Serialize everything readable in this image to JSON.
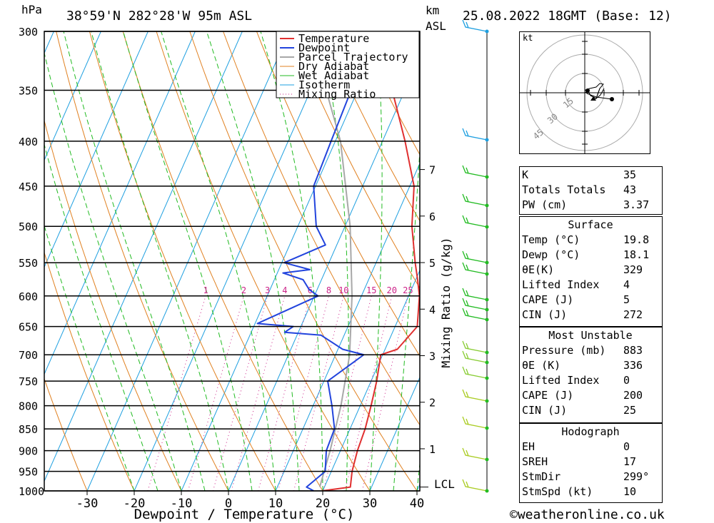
{
  "header": {
    "pressure_unit": "hPa",
    "location": "38°59'N  282°28'W  95m  ASL",
    "km_label": "km",
    "asl_label": "ASL",
    "datetime": "25.08.2022  18GMT  (Base: 12)"
  },
  "chart_data": {
    "type": "skew-t",
    "xlabel": "Dewpoint / Temperature (°C)",
    "ylabel_left": "hPa",
    "ylabel_right": "Mixing Ratio (g/kg)",
    "x_ticks": [
      -30,
      -20,
      -10,
      0,
      10,
      20,
      30,
      40
    ],
    "pressure_levels": [
      300,
      350,
      400,
      450,
      500,
      550,
      600,
      650,
      700,
      750,
      800,
      850,
      900,
      950,
      1000
    ],
    "km_ticks": [
      1,
      2,
      3,
      4,
      5,
      6,
      7
    ],
    "lcl_label": "LCL",
    "mixing_ratio_labels": [
      "1",
      "2",
      "3",
      "4",
      "6",
      "8",
      "10",
      "15",
      "20",
      "25"
    ],
    "legend": [
      "Temperature",
      "Dewpoint",
      "Parcel Trajectory",
      "Dry Adiabat",
      "Wet Adiabat",
      "Isotherm",
      "Mixing Ratio"
    ],
    "colors": {
      "temperature": "#e03030",
      "dewpoint": "#2244dd",
      "parcel": "#a8a8a8",
      "dry_adiabat": "#e08020",
      "wet_adiabat": "#22bb22",
      "isotherm": "#1e9fe0",
      "mixing_ratio": "#cc2288"
    },
    "temperature_profile": [
      {
        "p": 1000,
        "t": 19.8
      },
      {
        "p": 990,
        "t": 25.5
      },
      {
        "p": 950,
        "t": 24.4
      },
      {
        "p": 900,
        "t": 23.6
      },
      {
        "p": 850,
        "t": 23.2
      },
      {
        "p": 800,
        "t": 22.3
      },
      {
        "p": 750,
        "t": 21.2
      },
      {
        "p": 700,
        "t": 19.6
      },
      {
        "p": 690,
        "t": 22.6
      },
      {
        "p": 650,
        "t": 24.7
      },
      {
        "p": 600,
        "t": 22.3
      },
      {
        "p": 575,
        "t": 20.4
      },
      {
        "p": 550,
        "t": 18.3
      },
      {
        "p": 500,
        "t": 14.2
      },
      {
        "p": 450,
        "t": 10.9
      },
      {
        "p": 400,
        "t": 4.8
      },
      {
        "p": 350,
        "t": -2.7
      },
      {
        "p": 300,
        "t": -12.0
      }
    ],
    "dewpoint_profile": [
      {
        "p": 1000,
        "t": 18.1
      },
      {
        "p": 990,
        "t": 16.2
      },
      {
        "p": 950,
        "t": 18.7
      },
      {
        "p": 900,
        "t": 17.0
      },
      {
        "p": 850,
        "t": 16.7
      },
      {
        "p": 800,
        "t": 14.0
      },
      {
        "p": 750,
        "t": 10.8
      },
      {
        "p": 700,
        "t": 16.0
      },
      {
        "p": 690,
        "t": 11.0
      },
      {
        "p": 665,
        "t": 5.1
      },
      {
        "p": 660,
        "t": -2.9
      },
      {
        "p": 650,
        "t": -1.6
      },
      {
        "p": 645,
        "t": -9.5
      },
      {
        "p": 600,
        "t": 0.8
      },
      {
        "p": 590,
        "t": -1.7
      },
      {
        "p": 575,
        "t": -3.9
      },
      {
        "p": 565,
        "t": -8.8
      },
      {
        "p": 560,
        "t": -3.4
      },
      {
        "p": 550,
        "t": -9.5
      },
      {
        "p": 525,
        "t": -2.4
      },
      {
        "p": 500,
        "t": -6.1
      },
      {
        "p": 450,
        "t": -10.4
      },
      {
        "p": 400,
        "t": -10.9
      },
      {
        "p": 350,
        "t": -11.4
      },
      {
        "p": 300,
        "t": -17.0
      }
    ],
    "parcel_profile": [
      {
        "p": 990,
        "t": 19.0
      },
      {
        "p": 900,
        "t": 17.8
      },
      {
        "p": 800,
        "t": 15.9
      },
      {
        "p": 700,
        "t": 13.0
      },
      {
        "p": 600,
        "t": 8.0
      },
      {
        "p": 500,
        "t": 1.1
      },
      {
        "p": 400,
        "t": -8.9
      },
      {
        "p": 300,
        "t": -25.7
      }
    ]
  },
  "hodograph": {
    "unit": "kt",
    "ring_labels": [
      "15",
      "30",
      "45"
    ]
  },
  "indices": [
    {
      "label": "K",
      "value": "35"
    },
    {
      "label": "Totals Totals",
      "value": "43"
    },
    {
      "label": "PW (cm)",
      "value": "3.37"
    }
  ],
  "surface": {
    "title": "Surface",
    "rows": [
      {
        "label": "Temp (°C)",
        "value": "19.8"
      },
      {
        "label": "Dewp (°C)",
        "value": "18.1"
      },
      {
        "label": "θE(K)",
        "value": "329"
      },
      {
        "label": "Lifted Index",
        "value": "4"
      },
      {
        "label": "CAPE (J)",
        "value": "5"
      },
      {
        "label": "CIN (J)",
        "value": "272"
      }
    ]
  },
  "most_unstable": {
    "title": "Most Unstable",
    "rows": [
      {
        "label": "Pressure (mb)",
        "value": "883"
      },
      {
        "label": "θE (K)",
        "value": "336"
      },
      {
        "label": "Lifted Index",
        "value": "0"
      },
      {
        "label": "CAPE (J)",
        "value": "200"
      },
      {
        "label": "CIN (J)",
        "value": "25"
      }
    ]
  },
  "hodograph_table": {
    "title": "Hodograph",
    "rows": [
      {
        "label": "EH",
        "value": "0"
      },
      {
        "label": "SREH",
        "value": "17"
      },
      {
        "label": "StmDir",
        "value": "299°"
      },
      {
        "label": "StmSpd (kt)",
        "value": "10"
      }
    ]
  },
  "credit": "©weatheronline.co.uk"
}
